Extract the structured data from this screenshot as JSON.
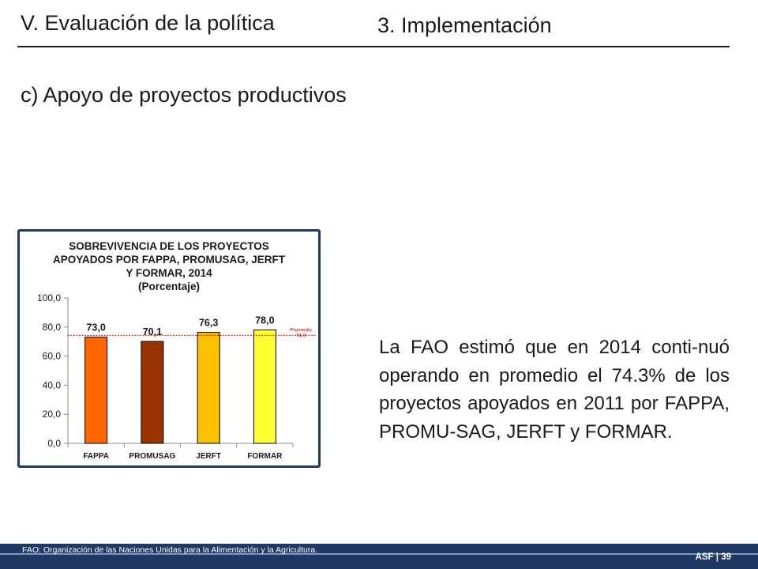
{
  "header": {
    "section": "V. Evaluación de la política",
    "subsection": "3. Implementación"
  },
  "subtitle": "c) Apoyo de proyectos productivos",
  "chart": {
    "title_lines": [
      "SOBREVIVENCIA DE LOS PROYECTOS",
      "APOYADOS POR FAPPA, PROMUSAG, JERFT",
      "Y FORMAR, 2014",
      "(Porcentaje)"
    ]
  },
  "chart_data": {
    "type": "bar",
    "title": "SOBREVIVENCIA DE LOS PROYECTOS APOYADOS POR FAPPA, PROMUSAG, JERFT Y FORMAR, 2014 (Porcentaje)",
    "categories": [
      "FAPPA",
      "PROMUSAG",
      "JERFT",
      "FORMAR"
    ],
    "values": [
      73.0,
      70.1,
      76.3,
      78.0
    ],
    "value_labels": [
      "73,0",
      "70,1",
      "76,3",
      "78,0"
    ],
    "bar_colors": [
      "#FF6600",
      "#993300",
      "#FFC000",
      "#FFFF33"
    ],
    "ylim": [
      0,
      100
    ],
    "yticks": [
      0,
      20,
      40,
      60,
      80,
      100
    ],
    "ytick_labels": [
      "0,0",
      "20,0",
      "40,0",
      "60,0",
      "80,0",
      "100,0"
    ],
    "reference_line": {
      "value": 74.3,
      "label_lines": [
        "Promedio",
        "74.3"
      ],
      "color": "#C00000"
    },
    "grid": false,
    "legend": "none"
  },
  "body_text": "La FAO estimó que en 2014 conti-nuó operando en promedio el 74.3% de los proyectos apoyados en 2011 por FAPPA, PROMU-SAG, JERFT y FORMAR.",
  "footer": {
    "note": "FAO: Organización de las Naciones Unidas para la Alimentación y la Agricultura.",
    "page": "ASF | 39"
  },
  "colors": {
    "footer_bar": "#1f3864",
    "chart_border": "#1f3864"
  }
}
